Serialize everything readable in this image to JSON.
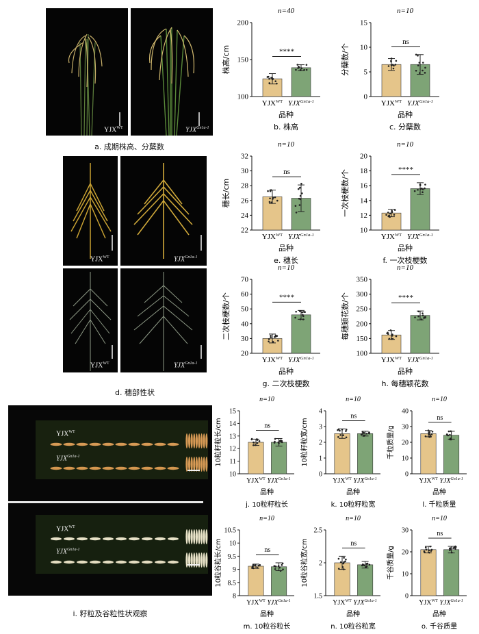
{
  "photos": {
    "a": {
      "left": "YJX",
      "left_sup": "WT",
      "right": "YJX",
      "right_sup": "Gn1a-1"
    },
    "d_top": {
      "left": "YJX",
      "left_sup": "WT",
      "right": "YJX",
      "right_sup": "Gn1a-1"
    },
    "d_bot": {
      "left": "YJX",
      "left_sup": "WT",
      "right": "YJX",
      "right_sup": "Gn1a-1"
    },
    "i_top": {
      "row1": "YJX",
      "row1_sup": "WT",
      "row2": "YJX",
      "row2_sup": "Gn1a-1"
    },
    "i_bot": {
      "row1": "YJX",
      "row1_sup": "WT",
      "row2": "YJX",
      "row2_sup": "Gn1a-1"
    }
  },
  "captions": {
    "a": "a.  成期株高、分蘖数",
    "d": "d.  穗部性状",
    "i": "i.  籽粒及谷粒性状观察"
  },
  "chart_data": [
    {
      "id": "b",
      "type": "bar",
      "caption": "b.  株高",
      "n": "n=40",
      "sig": "****",
      "ylabel": "株高/cm",
      "xlabel": "品种",
      "ylim": [
        100,
        200
      ],
      "yticks": [
        100,
        150,
        200
      ],
      "categories": [
        "YJXWT",
        "YJXGn1a-1"
      ],
      "cat_sup": [
        "WT",
        "Gn1a-1"
      ],
      "values": [
        124,
        139
      ],
      "err": [
        7,
        4
      ]
    },
    {
      "id": "c",
      "type": "bar",
      "caption": "c.  分蘖数",
      "n": "n=10",
      "sig": "ns",
      "ylabel": "分蘖数/个",
      "xlabel": "品种",
      "ylim": [
        0,
        15
      ],
      "yticks": [
        0,
        5,
        10,
        15
      ],
      "categories": [
        "YJXWT",
        "YJXGn1a-1"
      ],
      "cat_sup": [
        "WT",
        "Gn1a-1"
      ],
      "values": [
        6.5,
        6.5
      ],
      "err": [
        1.2,
        2.0
      ]
    },
    {
      "id": "e",
      "type": "bar",
      "caption": "e.  穗长",
      "n": "n=10",
      "sig": "ns",
      "ylabel": "穗长/cm",
      "xlabel": "品种",
      "ylim": [
        22,
        32
      ],
      "yticks": [
        22,
        24,
        26,
        28,
        30,
        32
      ],
      "categories": [
        "YJXWT",
        "YJXGn1a-1"
      ],
      "cat_sup": [
        "WT",
        "Gn1a-1"
      ],
      "values": [
        26.5,
        26.3
      ],
      "err": [
        0.9,
        1.8
      ]
    },
    {
      "id": "f",
      "type": "bar",
      "caption": "f.  一次枝梗数",
      "n": "n=10",
      "sig": "****",
      "ylabel": "一次枝梗数/个",
      "xlabel": "品种",
      "ylim": [
        10,
        20
      ],
      "yticks": [
        10,
        12,
        14,
        16,
        18,
        20
      ],
      "categories": [
        "YJXWT",
        "YJXGn1a-1"
      ],
      "cat_sup": [
        "WT",
        "Gn1a-1"
      ],
      "values": [
        12.3,
        15.6
      ],
      "err": [
        0.5,
        0.8
      ]
    },
    {
      "id": "g",
      "type": "bar",
      "caption": "g.  二次枝梗数",
      "n": "n=10",
      "sig": "****",
      "ylabel": "二次枝梗数/个",
      "xlabel": "品种",
      "ylim": [
        20,
        70
      ],
      "yticks": [
        20,
        30,
        40,
        50,
        60,
        70
      ],
      "categories": [
        "YJXWT",
        "YJXGn1a-1"
      ],
      "cat_sup": [
        "WT",
        "Gn1a-1"
      ],
      "values": [
        30,
        46
      ],
      "err": [
        3,
        3
      ]
    },
    {
      "id": "h",
      "type": "bar",
      "caption": "h.  每穗颖花数",
      "n": "n=10",
      "sig": "****",
      "ylabel": "每穗颖花数/个",
      "xlabel": "品种",
      "ylim": [
        100,
        350
      ],
      "yticks": [
        100,
        150,
        200,
        250,
        300,
        350
      ],
      "categories": [
        "YJXWT",
        "YJXGn1a-1"
      ],
      "cat_sup": [
        "WT",
        "Gn1a-1"
      ],
      "values": [
        162,
        228
      ],
      "err": [
        15,
        15
      ]
    },
    {
      "id": "j",
      "type": "bar",
      "caption": "j.  10粒籽粒长",
      "n": "n=10",
      "sig": "ns",
      "ylabel": "10粒籽粒长/cm",
      "xlabel": "品种",
      "ylim": [
        10,
        15
      ],
      "yticks": [
        10,
        11,
        12,
        13,
        14,
        15
      ],
      "categories": [
        "YJXWT",
        "YJXGn1a-1"
      ],
      "cat_sup": [
        "WT",
        "Gn1a-1"
      ],
      "values": [
        12.5,
        12.5
      ],
      "err": [
        0.25,
        0.3
      ]
    },
    {
      "id": "k",
      "type": "bar",
      "caption": "k.  10粒籽粒宽",
      "n": "n=10",
      "sig": "ns",
      "ylabel": "10粒籽粒宽/cm",
      "xlabel": "品种",
      "ylim": [
        0,
        4
      ],
      "yticks": [
        0,
        1,
        2,
        3,
        4
      ],
      "categories": [
        "YJXWT",
        "YJXGn1a-1"
      ],
      "cat_sup": [
        "WT",
        "Gn1a-1"
      ],
      "values": [
        2.55,
        2.55
      ],
      "err": [
        0.3,
        0.15
      ]
    },
    {
      "id": "l",
      "type": "bar",
      "caption": "l.  千粒质量",
      "n": "n=10",
      "sig": "ns",
      "ylabel": "千粒质量/g",
      "xlabel": "品种",
      "ylim": [
        0,
        40
      ],
      "yticks": [
        0,
        10,
        20,
        30,
        40
      ],
      "categories": [
        "YJXWT",
        "YJXGn1a-1"
      ],
      "cat_sup": [
        "WT",
        "Gn1a-1"
      ],
      "values": [
        25.5,
        24.5
      ],
      "err": [
        2,
        2.5
      ]
    },
    {
      "id": "m",
      "type": "bar",
      "caption": "m.  10粒谷粒长",
      "n": "n=10",
      "sig": "ns",
      "ylabel": "10粒谷粒长/cm",
      "xlabel": "品种",
      "ylim": [
        8.0,
        10.5
      ],
      "yticks": [
        8.0,
        8.5,
        9.0,
        9.5,
        10.0,
        10.5
      ],
      "categories": [
        "YJXWT",
        "YJXGn1a-1"
      ],
      "cat_sup": [
        "WT",
        "Gn1a-1"
      ],
      "values": [
        9.12,
        9.1
      ],
      "err": [
        0.08,
        0.15
      ]
    },
    {
      "id": "n",
      "type": "bar",
      "caption": "n.  10粒谷粒宽",
      "n": "n=10",
      "sig": "ns",
      "ylabel": "10粒谷粒宽/cm",
      "xlabel": "品种",
      "ylim": [
        1.5,
        2.5
      ],
      "yticks": [
        1.5,
        2.0,
        2.5
      ],
      "categories": [
        "YJXWT",
        "YJXGn1a-1"
      ],
      "cat_sup": [
        "WT",
        "Gn1a-1"
      ],
      "values": [
        2.0,
        1.97
      ],
      "err": [
        0.1,
        0.05
      ]
    },
    {
      "id": "o",
      "type": "bar",
      "caption": "o.  千谷质量",
      "n": "n=10",
      "sig": "ns",
      "ylabel": "千谷质量/g",
      "xlabel": "品种",
      "ylim": [
        0,
        30
      ],
      "yticks": [
        0,
        10,
        20,
        30
      ],
      "categories": [
        "YJXWT",
        "YJXGn1a-1"
      ],
      "cat_sup": [
        "WT",
        "Gn1a-1"
      ],
      "values": [
        21,
        21
      ],
      "err": [
        1.5,
        1.5
      ]
    }
  ],
  "colors": {
    "wt_bar": "#e5c58a",
    "gn_bar": "#7ea476",
    "axis": "#111111",
    "photo_bg": "#050505"
  }
}
